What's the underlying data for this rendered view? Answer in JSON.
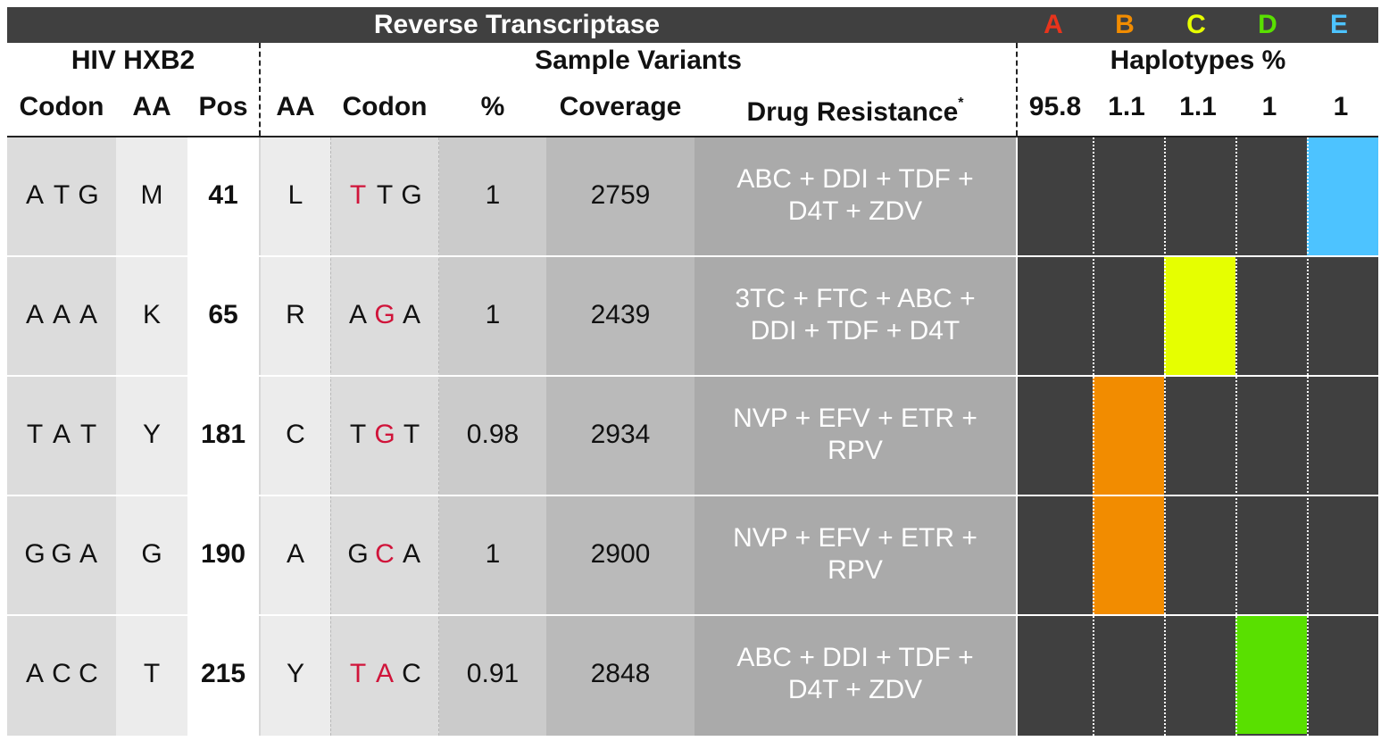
{
  "title": "Reverse Transcriptase",
  "haplotypes": [
    {
      "label": "A",
      "percent": "95.8",
      "color": "#e8341c"
    },
    {
      "label": "B",
      "percent": "1.1",
      "color": "#f28c00"
    },
    {
      "label": "C",
      "percent": "1.1",
      "color": "#e6ff00"
    },
    {
      "label": "D",
      "percent": "1",
      "color": "#59e000"
    },
    {
      "label": "E",
      "percent": "1",
      "color": "#4dc3ff"
    }
  ],
  "groups": {
    "reference": "HIV HXB2",
    "sample": "Sample Variants",
    "haplotypes": "Haplotypes %"
  },
  "columns": {
    "ref_codon": "Codon",
    "ref_aa": "AA",
    "pos": "Pos",
    "var_aa": "AA",
    "var_codon": "Codon",
    "pct": "%",
    "coverage": "Coverage",
    "drug_resistance": "Drug Resistance",
    "drug_resistance_mark": "*"
  },
  "rows": [
    {
      "ref_codon": [
        "A",
        "T",
        "G"
      ],
      "ref_aa": "M",
      "pos": "41",
      "var_aa": "L",
      "var_codon": [
        "T",
        "T",
        "G"
      ],
      "mutated": [
        0
      ],
      "pct": "1",
      "coverage": "2759",
      "drug": [
        "ABC + DDI + TDF +",
        "D4T + ZDV"
      ],
      "haplotype": "E"
    },
    {
      "ref_codon": [
        "A",
        "A",
        "A"
      ],
      "ref_aa": "K",
      "pos": "65",
      "var_aa": "R",
      "var_codon": [
        "A",
        "G",
        "A"
      ],
      "mutated": [
        1
      ],
      "pct": "1",
      "coverage": "2439",
      "drug": [
        "3TC + FTC + ABC +",
        "DDI + TDF + D4T"
      ],
      "haplotype": "C"
    },
    {
      "ref_codon": [
        "T",
        "A",
        "T"
      ],
      "ref_aa": "Y",
      "pos": "181",
      "var_aa": "C",
      "var_codon": [
        "T",
        "G",
        "T"
      ],
      "mutated": [
        1
      ],
      "pct": "0.98",
      "coverage": "2934",
      "drug": [
        "NVP + EFV + ETR +",
        "RPV"
      ],
      "haplotype": "B"
    },
    {
      "ref_codon": [
        "G",
        "G",
        "A"
      ],
      "ref_aa": "G",
      "pos": "190",
      "var_aa": "A",
      "var_codon": [
        "G",
        "C",
        "A"
      ],
      "mutated": [
        1
      ],
      "pct": "1",
      "coverage": "2900",
      "drug": [
        "NVP + EFV + ETR +",
        "RPV"
      ],
      "haplotype": "B"
    },
    {
      "ref_codon": [
        "A",
        "C",
        "C"
      ],
      "ref_aa": "T",
      "pos": "215",
      "var_aa": "Y",
      "var_codon": [
        "T",
        "A",
        "C"
      ],
      "mutated": [
        0,
        1
      ],
      "pct": "0.91",
      "coverage": "2848",
      "drug": [
        "ABC + DDI + TDF +",
        "D4T + ZDV"
      ],
      "haplotype": "D"
    }
  ]
}
